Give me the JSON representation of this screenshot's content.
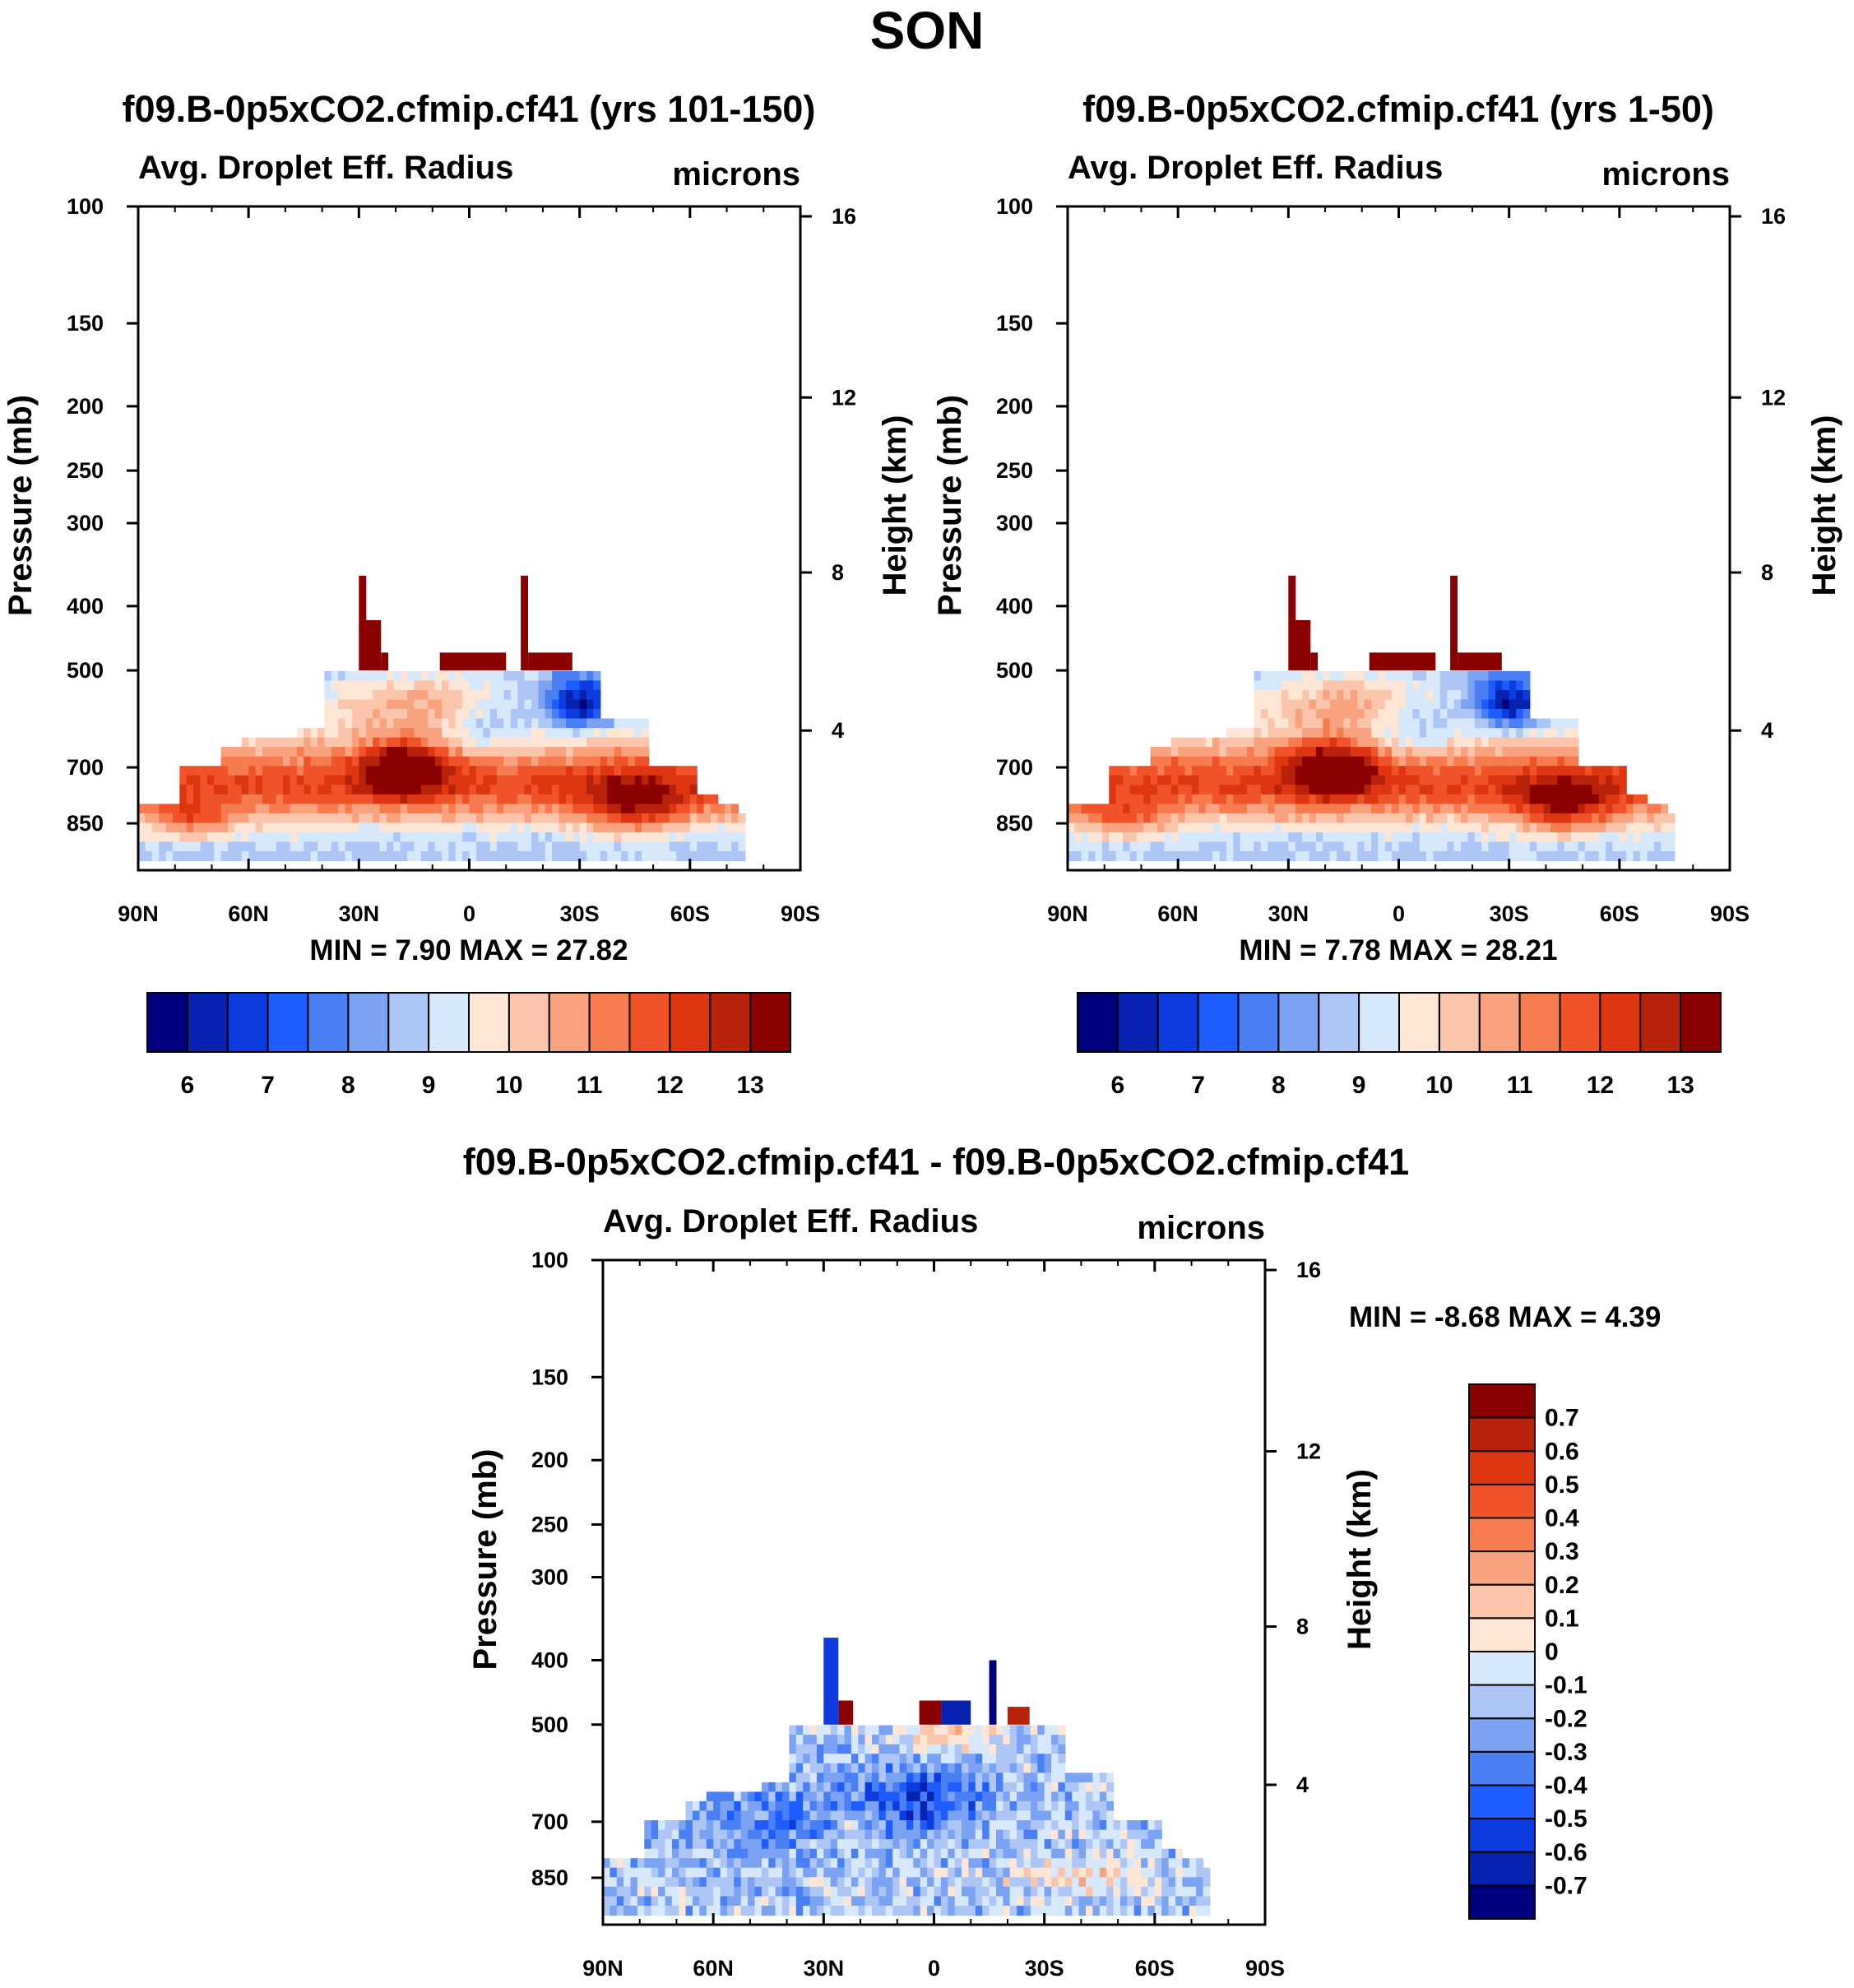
{
  "page": {
    "title": "SON"
  },
  "chart_data": [
    {
      "type": "heatmap",
      "id": "panel_left",
      "title": "f09.B-0p5xCO2.cfmip.cf41 (yrs 101-150)",
      "left_label": "Avg. Droplet Eff. Radius",
      "right_label": "microns",
      "ylabel": "Pressure (mb)",
      "ylabel_right": "Height (km)",
      "xticks": [
        "90N",
        "60N",
        "30N",
        "0",
        "30S",
        "60S",
        "90S"
      ],
      "yticks": [
        "100",
        "150",
        "200",
        "250",
        "300",
        "400",
        "500",
        "700",
        "850"
      ],
      "yticks_right": [
        "16",
        "12",
        "8",
        "4"
      ],
      "ylim": [
        1000,
        100
      ],
      "min_max": "MIN =   7.90  MAX =  27.82",
      "min": 7.9,
      "max": 27.82,
      "colorbar": {
        "orientation": "horizontal",
        "ticks": [
          "6",
          "7",
          "8",
          "9",
          "10",
          "11",
          "12",
          "13"
        ]
      }
    },
    {
      "type": "heatmap",
      "id": "panel_right",
      "title": "f09.B-0p5xCO2.cfmip.cf41 (yrs 1-50)",
      "left_label": "Avg. Droplet Eff. Radius",
      "right_label": "microns",
      "ylabel": "Pressure (mb)",
      "ylabel_right": "Height (km)",
      "xticks": [
        "90N",
        "60N",
        "30N",
        "0",
        "30S",
        "60S",
        "90S"
      ],
      "yticks": [
        "100",
        "150",
        "200",
        "250",
        "300",
        "400",
        "500",
        "700",
        "850"
      ],
      "yticks_right": [
        "16",
        "12",
        "8",
        "4"
      ],
      "ylim": [
        1000,
        100
      ],
      "min_max": "MIN =   7.78  MAX =  28.21",
      "min": 7.78,
      "max": 28.21,
      "colorbar": {
        "orientation": "horizontal",
        "ticks": [
          "6",
          "7",
          "8",
          "9",
          "10",
          "11",
          "12",
          "13"
        ]
      }
    },
    {
      "type": "heatmap",
      "id": "panel_diff",
      "title": "f09.B-0p5xCO2.cfmip.cf41 - f09.B-0p5xCO2.cfmip.cf41",
      "left_label": "Avg. Droplet Eff. Radius",
      "right_label": "microns",
      "ylabel": "Pressure (mb)",
      "ylabel_right": "Height (km)",
      "xticks": [
        "90N",
        "60N",
        "30N",
        "0",
        "30S",
        "60S",
        "90S"
      ],
      "yticks": [
        "100",
        "150",
        "200",
        "250",
        "300",
        "400",
        "500",
        "700",
        "850"
      ],
      "yticks_right": [
        "16",
        "12",
        "8",
        "4"
      ],
      "ylim": [
        1000,
        100
      ],
      "min_max": "MIN =  -8.68  MAX =    4.39",
      "min": -8.68,
      "max": 4.39,
      "colorbar": {
        "orientation": "vertical",
        "ticks": [
          "0.7",
          "0.6",
          "0.5",
          "0.4",
          "0.3",
          "0.2",
          "0.1",
          "0",
          "-0.1",
          "-0.2",
          "-0.3",
          "-0.4",
          "-0.5",
          "-0.6",
          "-0.7"
        ]
      }
    }
  ],
  "colors": {
    "colorbar_16": [
      "#00007f",
      "#0721b0",
      "#0c3ce0",
      "#1e5cff",
      "#4a7ff5",
      "#7ca2f3",
      "#adc6f6",
      "#d8e8fb",
      "#fde6d6",
      "#fbc5ac",
      "#f9a27f",
      "#f67b4e",
      "#f0522a",
      "#de3512",
      "#b8210a",
      "#8b0000"
    ]
  }
}
